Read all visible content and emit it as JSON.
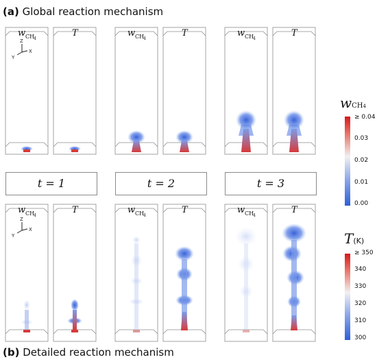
{
  "panels": {
    "a": {
      "label": "(a)",
      "title": "Global reaction mechanism"
    },
    "b": {
      "label": "(b)",
      "title": "Detailed reaction mechanism"
    }
  },
  "column_labels": {
    "w": "w",
    "w_sub": "CH",
    "w_sub2": "4",
    "T": "T"
  },
  "axes_triad": {
    "z": "Z",
    "x": "X",
    "y": "Y"
  },
  "time_labels": [
    "t = 1",
    "t = 2",
    "t = 3"
  ],
  "colorbars": {
    "w": {
      "symbol": "w",
      "sub": "CH",
      "sub2": "4",
      "ticks": [
        "≥ 0.04",
        "0.03",
        "0.02",
        "0.01",
        "0.00"
      ],
      "colors": {
        "high": "#d7191c",
        "mid": "#f0f0f0",
        "low": "#2c5fd8"
      }
    },
    "T": {
      "symbol": "T",
      "unit": "(K)",
      "ticks": [
        "≥ 350",
        "340",
        "330",
        "320",
        "310",
        "300"
      ],
      "colors": {
        "high": "#d7191c",
        "mid": "#f0f0f0",
        "low": "#2c5fd8"
      }
    }
  },
  "colors": {
    "plume_blue": "#4a74e0",
    "plume_light": "#b8c8f0",
    "inlet_red": "#d83a3a",
    "box_edge": "#8c8c8c"
  }
}
